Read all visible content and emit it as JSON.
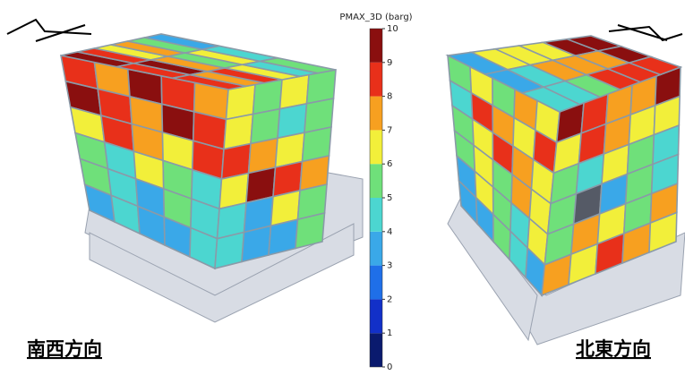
{
  "colorbar": {
    "title": "PMAX_3D (barg)",
    "lim": [
      0,
      10
    ],
    "ticks": [
      0,
      1,
      2,
      3,
      4,
      5,
      6,
      7,
      8,
      9,
      10
    ],
    "colors": [
      "#0a1a6e",
      "#1230c8",
      "#1f6fe8",
      "#3aa8e8",
      "#4cd6d0",
      "#6fe07a",
      "#f2ef3a",
      "#f7a020",
      "#e8301a",
      "#8a0f0f"
    ]
  },
  "labels": {
    "left": "南西方向",
    "right": "北東方向"
  }
}
